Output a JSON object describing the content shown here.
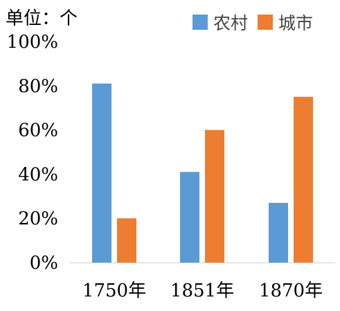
{
  "chart_data": {
    "type": "bar",
    "unit_label": "单位：个",
    "categories": [
      "1750年",
      "1851年",
      "1870年"
    ],
    "series": [
      {
        "name": "农村",
        "color": "#5b9bd5",
        "values": [
          81,
          41,
          27
        ]
      },
      {
        "name": "城市",
        "color": "#ed7d31",
        "values": [
          20,
          60,
          75
        ]
      }
    ],
    "y_ticks": [
      "0%",
      "20%",
      "40%",
      "60%",
      "80%",
      "100%"
    ],
    "ylim": [
      0,
      100
    ],
    "grid": false,
    "legend": "top-right"
  }
}
